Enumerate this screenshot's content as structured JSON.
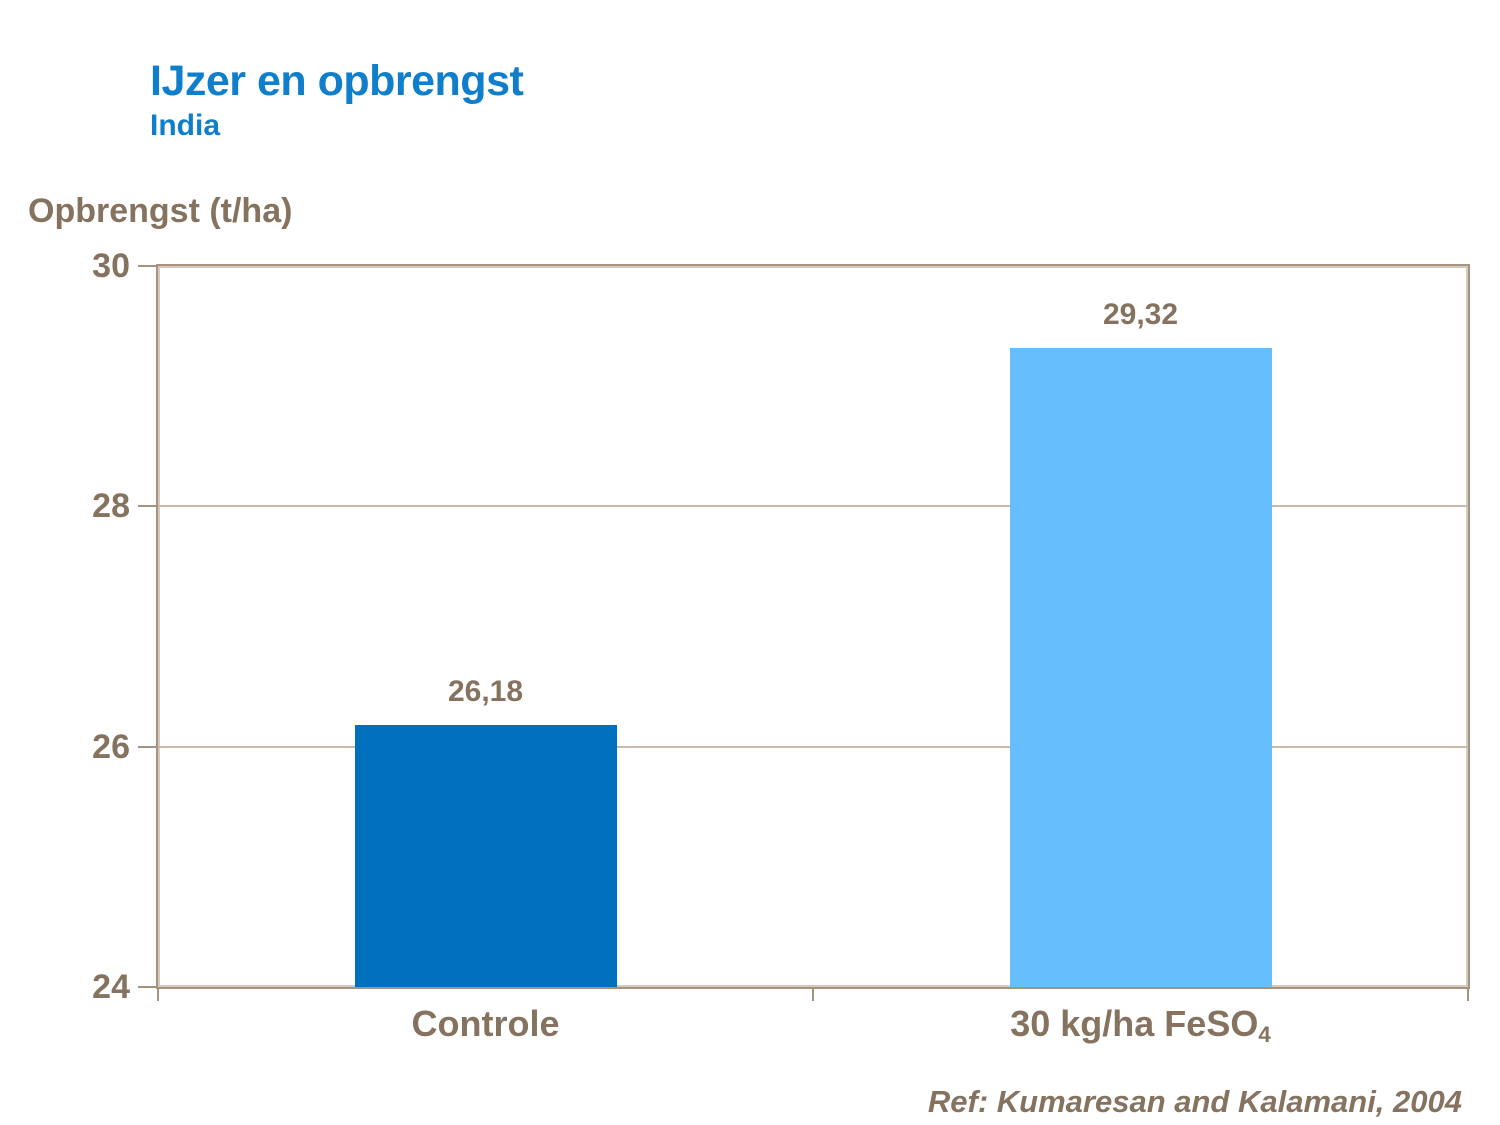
{
  "header": {
    "title": "IJzer en opbrengst",
    "subtitle": "India"
  },
  "y_axis_title": "Opbrengst (t/ha)",
  "reference": "Ref: Kumaresan and Kalamani, 2004",
  "colors": {
    "title_blue": "#0f7ecb",
    "text_brown": "#857360",
    "frame_dark": "#a5937f",
    "frame_light": "#d6cabc",
    "gridline": "#c8bbab",
    "background": "#ffffff"
  },
  "chart_data": {
    "type": "bar",
    "title": "IJzer en opbrengst",
    "subtitle": "India",
    "ylabel": "Opbrengst (t/ha)",
    "categories": [
      {
        "label": "Controle",
        "sub": ""
      },
      {
        "label": "30 kg/ha FeSO",
        "sub": "4"
      }
    ],
    "values": [
      26.18,
      29.32
    ],
    "value_labels": [
      "26,18",
      "29,32"
    ],
    "bar_colors": [
      "#0070bd",
      "#66befc"
    ],
    "ylim": [
      24,
      30
    ],
    "yticks": [
      24,
      26,
      28,
      30
    ],
    "grid": true,
    "legend": false
  }
}
